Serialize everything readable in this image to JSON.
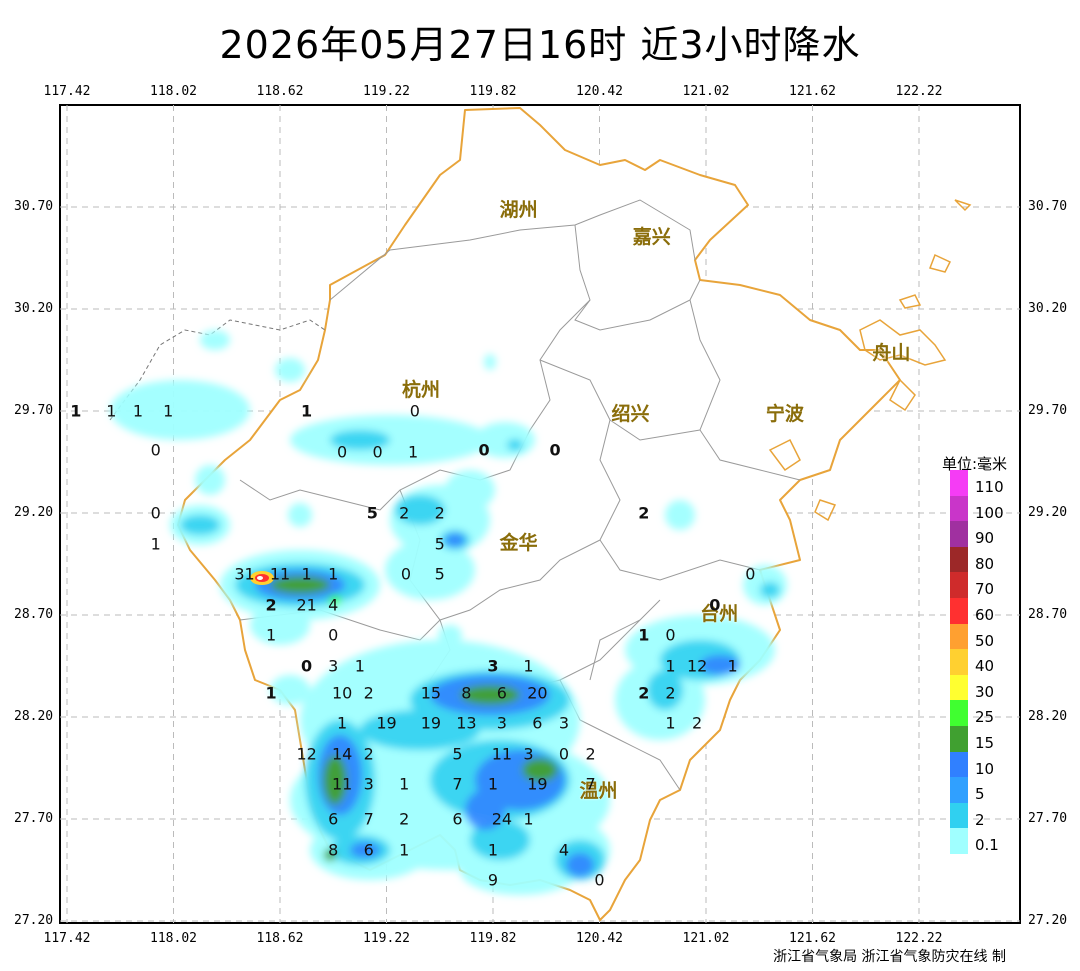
{
  "title": "2026年05月27日16时  近3小时降水",
  "credit": "浙江省气象局 浙江省气象防灾在线 制",
  "x_ticks": [
    "117.42",
    "118.02",
    "118.62",
    "119.22",
    "119.82",
    "120.42",
    "121.02",
    "121.62",
    "122.22"
  ],
  "y_ticks": [
    "30.70",
    "30.20",
    "29.70",
    "29.20",
    "28.70",
    "28.20",
    "27.70",
    "27.20"
  ],
  "legend": {
    "title": "单位:毫米",
    "items": [
      {
        "label": "110",
        "color": "#f53cf5"
      },
      {
        "label": "100",
        "color": "#c935c9"
      },
      {
        "label": "90",
        "color": "#a030a0"
      },
      {
        "label": "80",
        "color": "#9c2828"
      },
      {
        "label": "70",
        "color": "#cf2b2b"
      },
      {
        "label": "60",
        "color": "#ff3030"
      },
      {
        "label": "50",
        "color": "#ffa030"
      },
      {
        "label": "40",
        "color": "#ffd030"
      },
      {
        "label": "30",
        "color": "#ffff30"
      },
      {
        "label": "25",
        "color": "#40ff30"
      },
      {
        "label": "15",
        "color": "#40a030"
      },
      {
        "label": "10",
        "color": "#3080ff"
      },
      {
        "label": "5",
        "color": "#30a0ff"
      },
      {
        "label": "2",
        "color": "#30d0f0"
      },
      {
        "label": "0.1",
        "color": "#a0ffff"
      }
    ]
  },
  "cities": [
    {
      "name": "湖州",
      "lon": 119.97,
      "lat": 30.7
    },
    {
      "name": "嘉兴",
      "lon": 120.72,
      "lat": 30.57
    },
    {
      "name": "杭州",
      "lon": 119.42,
      "lat": 29.82
    },
    {
      "name": "绍兴",
      "lon": 120.6,
      "lat": 29.7
    },
    {
      "name": "宁波",
      "lon": 121.47,
      "lat": 29.7
    },
    {
      "name": "金华",
      "lon": 119.97,
      "lat": 29.07
    },
    {
      "name": "台州",
      "lon": 121.1,
      "lat": 28.72
    },
    {
      "name": "温州",
      "lon": 120.42,
      "lat": 27.85
    },
    {
      "name": "舟山",
      "lon": 122.07,
      "lat": 30.0
    }
  ],
  "station_values": [
    {
      "v": "1",
      "lon": 117.47,
      "lat": 29.7,
      "b": true
    },
    {
      "v": "1",
      "lon": 117.67,
      "lat": 29.7
    },
    {
      "v": "1",
      "lon": 117.82,
      "lat": 29.7
    },
    {
      "v": "1",
      "lon": 117.99,
      "lat": 29.7
    },
    {
      "v": "0",
      "lon": 117.92,
      "lat": 29.51
    },
    {
      "v": "1",
      "lon": 118.77,
      "lat": 29.7,
      "b": true
    },
    {
      "v": "0",
      "lon": 119.38,
      "lat": 29.7
    },
    {
      "v": "0",
      "lon": 118.97,
      "lat": 29.5
    },
    {
      "v": "0",
      "lon": 119.17,
      "lat": 29.5
    },
    {
      "v": "1",
      "lon": 119.37,
      "lat": 29.5
    },
    {
      "v": "0",
      "lon": 119.77,
      "lat": 29.51,
      "b": true
    },
    {
      "v": "0",
      "lon": 120.17,
      "lat": 29.51,
      "b": true
    },
    {
      "v": "0",
      "lon": 117.92,
      "lat": 29.2
    },
    {
      "v": "1",
      "lon": 117.92,
      "lat": 29.05
    },
    {
      "v": "5",
      "lon": 119.14,
      "lat": 29.2,
      "b": true
    },
    {
      "v": "2",
      "lon": 119.32,
      "lat": 29.2
    },
    {
      "v": "2",
      "lon": 119.52,
      "lat": 29.2
    },
    {
      "v": "2",
      "lon": 120.67,
      "lat": 29.2,
      "b": true
    },
    {
      "v": "5",
      "lon": 119.52,
      "lat": 29.05
    },
    {
      "v": "31",
      "lon": 118.42,
      "lat": 28.9
    },
    {
      "v": "11",
      "lon": 118.62,
      "lat": 28.9
    },
    {
      "v": "1",
      "lon": 118.77,
      "lat": 28.9
    },
    {
      "v": "1",
      "lon": 118.92,
      "lat": 28.9
    },
    {
      "v": "0",
      "lon": 119.33,
      "lat": 28.9
    },
    {
      "v": "5",
      "lon": 119.52,
      "lat": 28.9
    },
    {
      "v": "0",
      "lon": 121.27,
      "lat": 28.9
    },
    {
      "v": "2",
      "lon": 118.57,
      "lat": 28.75,
      "b": true
    },
    {
      "v": "21",
      "lon": 118.77,
      "lat": 28.75
    },
    {
      "v": "4",
      "lon": 118.92,
      "lat": 28.75
    },
    {
      "v": "0",
      "lon": 121.07,
      "lat": 28.75,
      "b": true
    },
    {
      "v": "1",
      "lon": 118.57,
      "lat": 28.6
    },
    {
      "v": "0",
      "lon": 118.92,
      "lat": 28.6
    },
    {
      "v": "1",
      "lon": 120.67,
      "lat": 28.6,
      "b": true
    },
    {
      "v": "0",
      "lon": 120.82,
      "lat": 28.6
    },
    {
      "v": "0",
      "lon": 118.77,
      "lat": 28.45,
      "b": true
    },
    {
      "v": "3",
      "lon": 118.92,
      "lat": 28.45
    },
    {
      "v": "1",
      "lon": 119.07,
      "lat": 28.45
    },
    {
      "v": "3",
      "lon": 119.82,
      "lat": 28.45,
      "b": true
    },
    {
      "v": "1",
      "lon": 120.02,
      "lat": 28.45
    },
    {
      "v": "1",
      "lon": 120.82,
      "lat": 28.45
    },
    {
      "v": "12",
      "lon": 120.97,
      "lat": 28.45
    },
    {
      "v": "1",
      "lon": 121.17,
      "lat": 28.45
    },
    {
      "v": "1",
      "lon": 118.57,
      "lat": 28.32,
      "b": true
    },
    {
      "v": "10",
      "lon": 118.97,
      "lat": 28.32
    },
    {
      "v": "2",
      "lon": 119.12,
      "lat": 28.32
    },
    {
      "v": "15",
      "lon": 119.47,
      "lat": 28.32
    },
    {
      "v": "8",
      "lon": 119.67,
      "lat": 28.32
    },
    {
      "v": "6",
      "lon": 119.87,
      "lat": 28.32
    },
    {
      "v": "20",
      "lon": 120.07,
      "lat": 28.32
    },
    {
      "v": "2",
      "lon": 120.67,
      "lat": 28.32,
      "b": true
    },
    {
      "v": "2",
      "lon": 120.82,
      "lat": 28.32
    },
    {
      "v": "1",
      "lon": 118.97,
      "lat": 28.17
    },
    {
      "v": "19",
      "lon": 119.22,
      "lat": 28.17
    },
    {
      "v": "19",
      "lon": 119.47,
      "lat": 28.17
    },
    {
      "v": "13",
      "lon": 119.67,
      "lat": 28.17
    },
    {
      "v": "3",
      "lon": 119.87,
      "lat": 28.17
    },
    {
      "v": "6",
      "lon": 120.07,
      "lat": 28.17
    },
    {
      "v": "3",
      "lon": 120.22,
      "lat": 28.17
    },
    {
      "v": "1",
      "lon": 120.82,
      "lat": 28.17
    },
    {
      "v": "2",
      "lon": 120.97,
      "lat": 28.17
    },
    {
      "v": "12",
      "lon": 118.77,
      "lat": 28.02
    },
    {
      "v": "14",
      "lon": 118.97,
      "lat": 28.02
    },
    {
      "v": "2",
      "lon": 119.12,
      "lat": 28.02
    },
    {
      "v": "5",
      "lon": 119.62,
      "lat": 28.02
    },
    {
      "v": "11",
      "lon": 119.87,
      "lat": 28.02
    },
    {
      "v": "3",
      "lon": 120.02,
      "lat": 28.02
    },
    {
      "v": "0",
      "lon": 120.22,
      "lat": 28.02
    },
    {
      "v": "2",
      "lon": 120.37,
      "lat": 28.02
    },
    {
      "v": "11",
      "lon": 118.97,
      "lat": 27.87
    },
    {
      "v": "3",
      "lon": 119.12,
      "lat": 27.87
    },
    {
      "v": "1",
      "lon": 119.32,
      "lat": 27.87
    },
    {
      "v": "7",
      "lon": 119.62,
      "lat": 27.87
    },
    {
      "v": "1",
      "lon": 119.82,
      "lat": 27.87
    },
    {
      "v": "19",
      "lon": 120.07,
      "lat": 27.87
    },
    {
      "v": "7",
      "lon": 120.37,
      "lat": 27.87
    },
    {
      "v": "6",
      "lon": 118.92,
      "lat": 27.7
    },
    {
      "v": "7",
      "lon": 119.12,
      "lat": 27.7
    },
    {
      "v": "2",
      "lon": 119.32,
      "lat": 27.7
    },
    {
      "v": "6",
      "lon": 119.62,
      "lat": 27.7
    },
    {
      "v": "24",
      "lon": 119.87,
      "lat": 27.7
    },
    {
      "v": "1",
      "lon": 120.02,
      "lat": 27.7
    },
    {
      "v": "8",
      "lon": 118.92,
      "lat": 27.55
    },
    {
      "v": "6",
      "lon": 119.12,
      "lat": 27.55
    },
    {
      "v": "1",
      "lon": 119.32,
      "lat": 27.55
    },
    {
      "v": "1",
      "lon": 119.82,
      "lat": 27.55
    },
    {
      "v": "4",
      "lon": 120.22,
      "lat": 27.55
    },
    {
      "v": "9",
      "lon": 119.82,
      "lat": 27.4
    },
    {
      "v": "0",
      "lon": 120.42,
      "lat": 27.4
    }
  ]
}
